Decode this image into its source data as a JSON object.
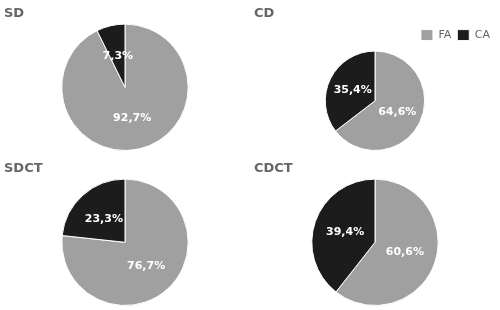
{
  "chart_data": [
    {
      "type": "pie",
      "title": "SD",
      "categories": [
        "FA",
        "CA"
      ],
      "values": [
        92.7,
        7.3
      ],
      "value_labels": [
        "92,7%",
        "7,3%"
      ],
      "colors": [
        "#A0A0A0",
        "#1C1C1C"
      ],
      "data_labels": true
    },
    {
      "type": "pie",
      "title": "CD",
      "categories": [
        "FA",
        "CA"
      ],
      "values": [
        64.6,
        35.4
      ],
      "value_labels": [
        "64,6%",
        "35,4%"
      ],
      "colors": [
        "#A0A0A0",
        "#1C1C1C"
      ],
      "data_labels": true,
      "legend": "upper right"
    },
    {
      "type": "pie",
      "title": "SDCT",
      "categories": [
        "FA",
        "CA"
      ],
      "values": [
        76.7,
        23.3
      ],
      "value_labels": [
        "76,7%",
        "23,3%"
      ],
      "colors": [
        "#A0A0A0",
        "#1C1C1C"
      ],
      "data_labels": true
    },
    {
      "type": "pie",
      "title": "CDCT",
      "categories": [
        "FA",
        "CA"
      ],
      "values": [
        60.6,
        39.4
      ],
      "value_labels": [
        "60,6%",
        "39,4%"
      ],
      "colors": [
        "#A0A0A0",
        "#1C1C1C"
      ],
      "data_labels": true
    }
  ]
}
